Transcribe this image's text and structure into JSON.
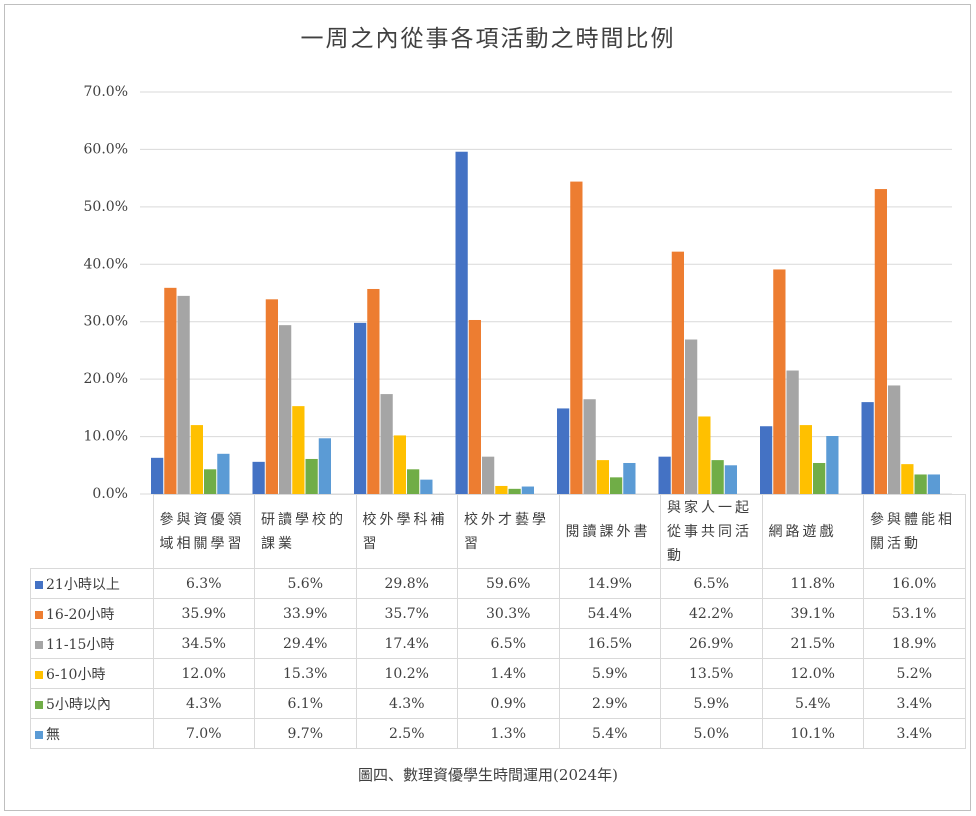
{
  "chart_data": {
    "type": "bar",
    "title": "一周之內從事各項活動之時間比例",
    "caption": "圖四、數理資優學生時間運用(2024年)",
    "categories": [
      "參與資優領域相關學習",
      "研讀學校的課業",
      "校外學科補習",
      "校外才藝學習",
      "閱讀課外書",
      "與家人一起從事共同活動",
      "網路遊戲",
      "參與體能相關活動"
    ],
    "series": [
      {
        "name": "21小時以上",
        "color": "#4472c4",
        "values": [
          6.3,
          5.6,
          29.8,
          59.6,
          14.9,
          6.5,
          11.8,
          16.0
        ],
        "value_labels": [
          "6.3%",
          "5.6%",
          "29.8%",
          "59.6%",
          "14.9%",
          "6.5%",
          "11.8%",
          "16.0%"
        ]
      },
      {
        "name": "16-20小時",
        "color": "#ed7d31",
        "values": [
          35.9,
          33.9,
          35.7,
          30.3,
          54.4,
          42.2,
          39.1,
          53.1
        ],
        "value_labels": [
          "35.9%",
          "33.9%",
          "35.7%",
          "30.3%",
          "54.4%",
          "42.2%",
          "39.1%",
          "53.1%"
        ]
      },
      {
        "name": "11-15小時",
        "color": "#a5a5a5",
        "values": [
          34.5,
          29.4,
          17.4,
          6.5,
          16.5,
          26.9,
          21.5,
          18.9
        ],
        "value_labels": [
          "34.5%",
          "29.4%",
          "17.4%",
          "6.5%",
          "16.5%",
          "26.9%",
          "21.5%",
          "18.9%"
        ]
      },
      {
        "name": "6-10小時",
        "color": "#ffc000",
        "values": [
          12.0,
          15.3,
          10.2,
          1.4,
          5.9,
          13.5,
          12.0,
          5.2
        ],
        "value_labels": [
          "12.0%",
          "15.3%",
          "10.2%",
          "1.4%",
          "5.9%",
          "13.5%",
          "12.0%",
          "5.2%"
        ]
      },
      {
        "name": "5小時以內",
        "color": "#70ad47",
        "values": [
          4.3,
          6.1,
          4.3,
          0.9,
          2.9,
          5.9,
          5.4,
          3.4
        ],
        "value_labels": [
          "4.3%",
          "6.1%",
          "4.3%",
          "0.9%",
          "2.9%",
          "5.9%",
          "5.4%",
          "3.4%"
        ]
      },
      {
        "name": "無",
        "color": "#5b9bd5",
        "values": [
          7.0,
          9.7,
          2.5,
          1.3,
          5.4,
          5.0,
          10.1,
          3.4
        ],
        "value_labels": [
          "7.0%",
          "9.7%",
          "2.5%",
          "1.3%",
          "5.4%",
          "5.0%",
          "10.1%",
          "3.4%"
        ]
      }
    ],
    "ylim": [
      0,
      70
    ],
    "yticks": [
      {
        "value": 0,
        "label": "0.0%"
      },
      {
        "value": 10,
        "label": "10.0%"
      },
      {
        "value": 20,
        "label": "20.0%"
      },
      {
        "value": 30,
        "label": "30.0%"
      },
      {
        "value": 40,
        "label": "40.0%"
      },
      {
        "value": 50,
        "label": "50.0%"
      },
      {
        "value": 60,
        "label": "60.0%"
      },
      {
        "value": 70,
        "label": "70.0%"
      }
    ],
    "grid": true
  }
}
